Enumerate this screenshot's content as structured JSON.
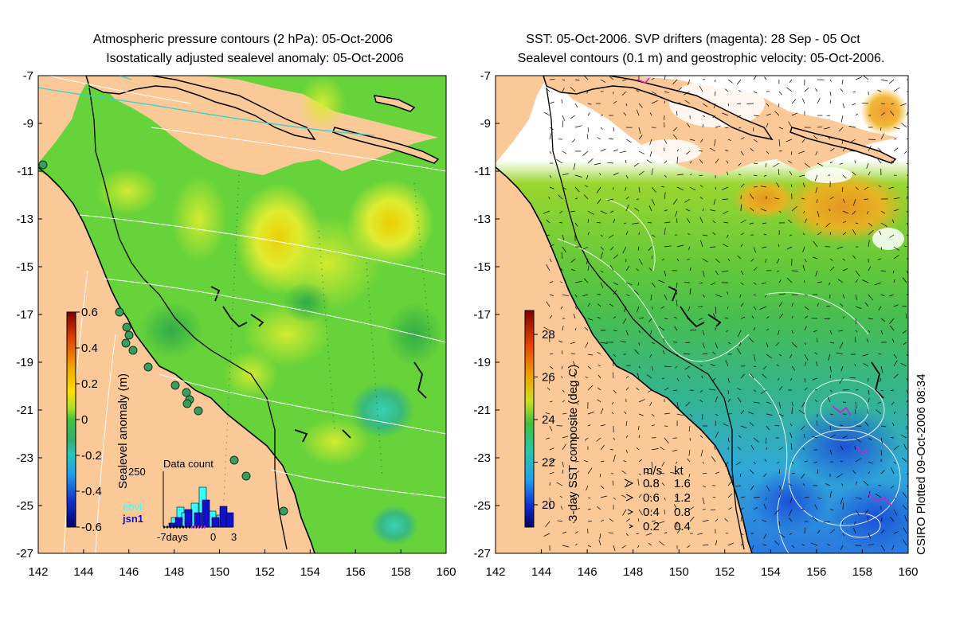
{
  "left_panel": {
    "title_line1": "Atmospheric pressure contours (2 hPa): 05-Oct-2006",
    "title_line2": "Isostatically adjusted sealevel anomaly: 05-Oct-2006",
    "colorbar": {
      "label": "Sealevel anomaly (m)",
      "ticks": [
        "0.6",
        "0.4",
        "0.2",
        "0",
        "-0.2",
        "-0.4",
        "-0.6"
      ]
    },
    "data_count": {
      "title": "Data count",
      "max_label": "250",
      "series_envi": "envi",
      "series_jsn1": "jsn1",
      "x_left": "-7days",
      "x_zero": "0",
      "x_right": "3",
      "envi_color": "#33ffff",
      "jsn1_color": "#1111cc"
    }
  },
  "right_panel": {
    "title_line1": "SST: 05-Oct-2006. SVP drifters (magenta): 28 Sep - 05 Oct",
    "title_line2": "Sealevel contours (0.1 m) and geostrophic velocity: 05-Oct-2006.",
    "colorbar": {
      "label": "3-day SST composite (deg C)",
      "ticks": [
        "28",
        "26",
        "24",
        "22",
        "20"
      ]
    },
    "velocity_key": {
      "header_ms": "m/s",
      "header_kt": "kt",
      "rows": [
        {
          "ms": "0.8",
          "kt": "1.6"
        },
        {
          "ms": "0.6",
          "kt": "1.2"
        },
        {
          "ms": "0.4",
          "kt": "0.8"
        },
        {
          "ms": "0.2",
          "kt": "0.4"
        }
      ]
    }
  },
  "axes": {
    "lat_ticks": [
      "-7",
      "-9",
      "-11",
      "-13",
      "-15",
      "-17",
      "-19",
      "-21",
      "-23",
      "-25",
      "-27"
    ],
    "lon_ticks": [
      "142",
      "144",
      "146",
      "148",
      "150",
      "152",
      "154",
      "156",
      "158",
      "160"
    ]
  },
  "stamp": "CSIRO Plotted 09-Oct-2006 08:34",
  "colors": {
    "land": "#fbc997",
    "ocean_green": "#66d33a",
    "coast": "#000000"
  }
}
